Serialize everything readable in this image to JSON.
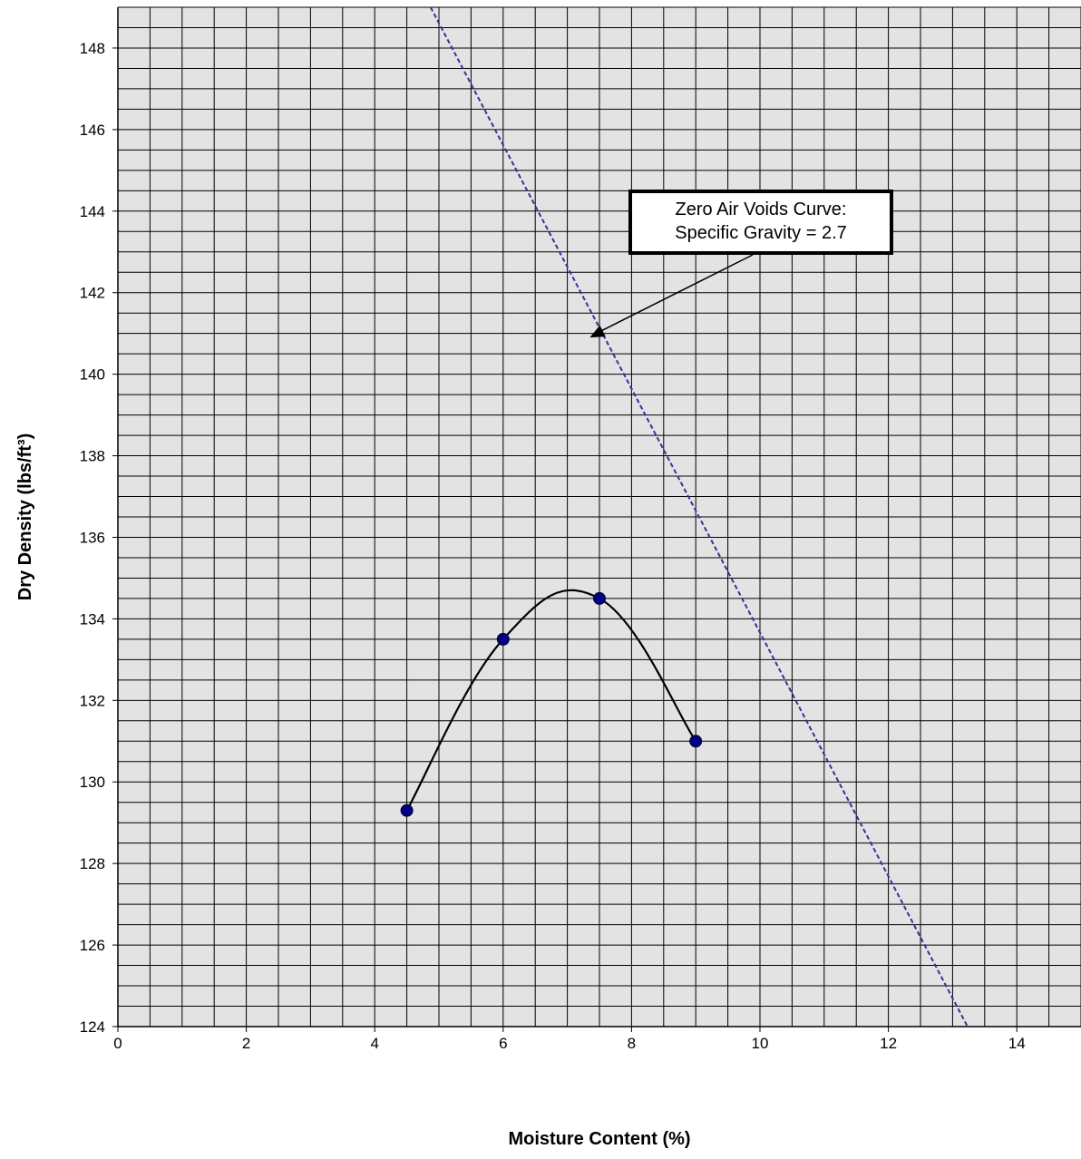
{
  "chart_data": {
    "type": "scatter",
    "xlabel": "Moisture Content (%)",
    "ylabel": "Dry Density (lbs/ft³)",
    "xlim": [
      0,
      15
    ],
    "ylim": [
      124,
      149
    ],
    "x_ticks": [
      "0",
      "2",
      "4",
      "6",
      "8",
      "10",
      "12",
      "14"
    ],
    "y_ticks": [
      "124",
      "126",
      "128",
      "130",
      "132",
      "134",
      "136",
      "138",
      "140",
      "142",
      "144",
      "146",
      "148"
    ],
    "x_tick_values": [
      0,
      2,
      4,
      6,
      8,
      10,
      12,
      14
    ],
    "y_tick_values": [
      124,
      126,
      128,
      130,
      132,
      134,
      136,
      138,
      140,
      142,
      144,
      146,
      148
    ],
    "x_minor_step": 0.5,
    "y_minor_step": 0.5,
    "grid": true,
    "plot_background": "#e3e3e3",
    "grid_color": "#000000",
    "series": [
      {
        "style": "markers+smooth-line",
        "color": "#000080",
        "line_color": "#000000",
        "x": [
          4.5,
          6.0,
          7.5,
          9.0
        ],
        "y": [
          129.3,
          133.5,
          134.5,
          131.0
        ]
      },
      {
        "style": "dashed-line",
        "color": "#333399",
        "x": [
          4.87,
          13.3
        ],
        "y": [
          149.0,
          123.8
        ]
      }
    ],
    "annotation": {
      "lines": [
        "Zero Air Voids Curve:",
        "Specific Gravity = 2.7"
      ],
      "arrow_to": [
        7.35,
        140.9
      ]
    }
  }
}
